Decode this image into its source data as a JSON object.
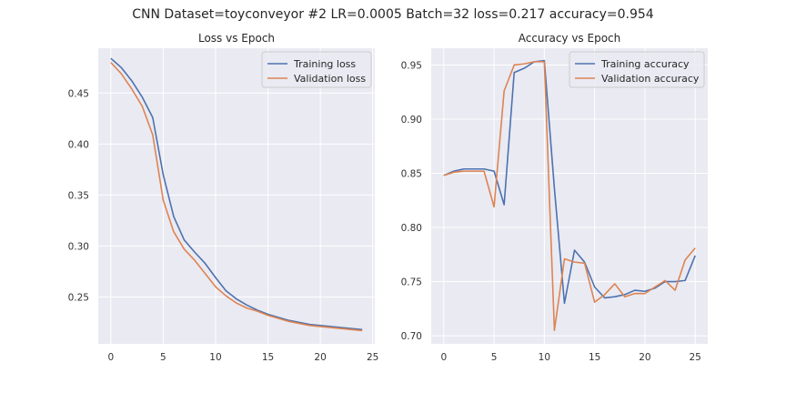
{
  "figure": {
    "suptitle": "CNN Dataset=toyconveyor #2 LR=0.0005 Batch=32 loss=0.217 accuracy=0.954"
  },
  "colors": {
    "background": "#eaeaf2",
    "grid": "#ffffff",
    "training": "#4c72b0",
    "validation": "#dd8452"
  },
  "chart_data": [
    {
      "type": "line",
      "title": "Loss vs Epoch",
      "xlabel": "",
      "ylabel": "",
      "grid": true,
      "legend_position": "top-right",
      "xlim": [
        -1.2,
        25.2
      ],
      "ylim": [
        0.204,
        0.494
      ],
      "xticks": [
        0,
        5,
        10,
        15,
        20,
        25
      ],
      "yticks": [
        0.25,
        0.3,
        0.35,
        0.4,
        0.45
      ],
      "ytick_labels": [
        "0.25",
        "0.30",
        "0.35",
        "0.40",
        "0.45"
      ],
      "x": [
        0,
        1,
        2,
        3,
        4,
        5,
        6,
        7,
        8,
        9,
        10,
        11,
        12,
        13,
        14,
        15,
        16,
        17,
        18,
        19,
        20,
        21,
        22,
        23,
        24
      ],
      "series": [
        {
          "name": "Training loss",
          "color_key": "training",
          "values": [
            0.484,
            0.475,
            0.462,
            0.446,
            0.426,
            0.37,
            0.329,
            0.306,
            0.294,
            0.283,
            0.269,
            0.256,
            0.248,
            0.242,
            0.237,
            0.233,
            0.23,
            0.227,
            0.225,
            0.223,
            0.222,
            0.221,
            0.22,
            0.219,
            0.218
          ]
        },
        {
          "name": "Validation loss",
          "color_key": "validation",
          "values": [
            0.48,
            0.469,
            0.454,
            0.437,
            0.409,
            0.345,
            0.314,
            0.297,
            0.286,
            0.273,
            0.26,
            0.251,
            0.244,
            0.239,
            0.236,
            0.232,
            0.229,
            0.226,
            0.224,
            0.222,
            0.221,
            0.22,
            0.219,
            0.218,
            0.217
          ]
        }
      ]
    },
    {
      "type": "line",
      "title": "Accuracy vs Epoch",
      "xlabel": "",
      "ylabel": "",
      "grid": true,
      "legend_position": "top-right",
      "xlim": [
        -1.25,
        26.25
      ],
      "ylim": [
        0.6925,
        0.9655
      ],
      "xticks": [
        0,
        5,
        10,
        15,
        20,
        25
      ],
      "yticks": [
        0.7,
        0.75,
        0.8,
        0.85,
        0.9,
        0.95
      ],
      "ytick_labels": [
        "0.70",
        "0.75",
        "0.80",
        "0.85",
        "0.90",
        "0.95"
      ],
      "x": [
        0,
        1,
        2,
        3,
        4,
        5,
        6,
        7,
        8,
        9,
        10,
        11,
        12,
        13,
        14,
        15,
        16,
        17,
        18,
        19,
        20,
        21,
        22,
        23,
        24,
        25
      ],
      "series": [
        {
          "name": "Training accuracy",
          "color_key": "training",
          "values": [
            0.848,
            0.852,
            0.854,
            0.854,
            0.854,
            0.852,
            0.821,
            0.943,
            0.947,
            0.953,
            0.954,
            0.836,
            0.73,
            0.779,
            0.768,
            0.745,
            0.735,
            0.736,
            0.738,
            0.742,
            0.741,
            0.744,
            0.75,
            0.75,
            0.751,
            0.774
          ]
        },
        {
          "name": "Validation accuracy",
          "color_key": "validation",
          "values": [
            0.848,
            0.851,
            0.852,
            0.852,
            0.852,
            0.819,
            0.926,
            0.95,
            0.951,
            0.953,
            0.953,
            0.705,
            0.771,
            0.768,
            0.767,
            0.731,
            0.738,
            0.748,
            0.736,
            0.739,
            0.739,
            0.745,
            0.751,
            0.742,
            0.77,
            0.781
          ]
        }
      ]
    }
  ]
}
